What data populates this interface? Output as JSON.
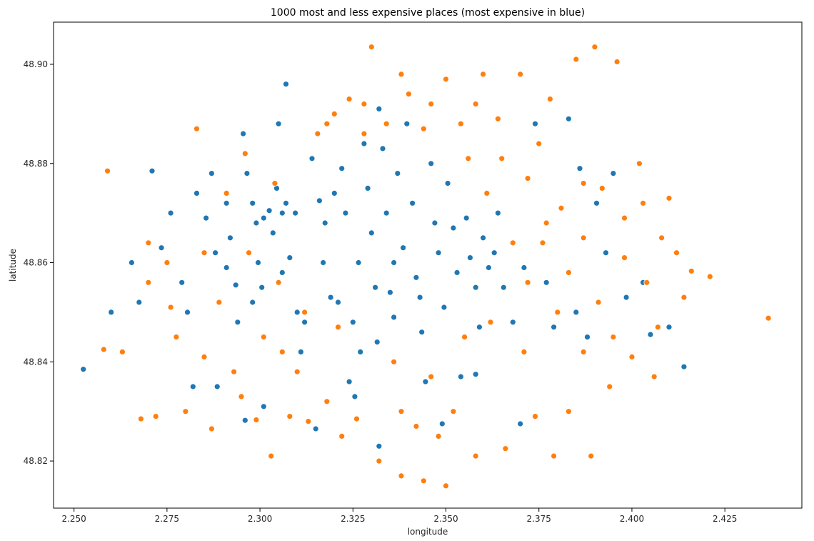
{
  "chart_data": {
    "type": "scatter",
    "title": "1000 most and less expensive places (most expensive in blue)",
    "xlabel": "longitude",
    "ylabel": "latitude",
    "xlim": [
      2.2445,
      2.4457
    ],
    "ylim": [
      48.8105,
      48.9085
    ],
    "xticks": [
      "2.250",
      "2.275",
      "2.300",
      "2.325",
      "2.350",
      "2.375",
      "2.400",
      "2.425"
    ],
    "yticks": [
      "48.82",
      "48.84",
      "48.86",
      "48.88",
      "48.90"
    ],
    "grid": false,
    "legend": "none",
    "series": [
      {
        "color": "#1f77b4",
        "points": [
          [
            2.2525,
            48.8385
          ],
          [
            2.26,
            48.85
          ],
          [
            2.2655,
            48.86
          ],
          [
            2.2675,
            48.852
          ],
          [
            2.271,
            48.8785
          ],
          [
            2.2735,
            48.863
          ],
          [
            2.276,
            48.87
          ],
          [
            2.279,
            48.856
          ],
          [
            2.2805,
            48.85
          ],
          [
            2.282,
            48.835
          ],
          [
            2.283,
            48.874
          ],
          [
            2.2855,
            48.869
          ],
          [
            2.287,
            48.878
          ],
          [
            2.288,
            48.862
          ],
          [
            2.2885,
            48.835
          ],
          [
            2.291,
            48.872
          ],
          [
            2.292,
            48.865
          ],
          [
            2.2935,
            48.8555
          ],
          [
            2.294,
            48.848
          ],
          [
            2.2955,
            48.886
          ],
          [
            2.2965,
            48.878
          ],
          [
            2.298,
            48.872
          ],
          [
            2.299,
            48.868
          ],
          [
            2.2995,
            48.86
          ],
          [
            2.3005,
            48.855
          ],
          [
            2.301,
            48.869
          ],
          [
            2.3025,
            48.8705
          ],
          [
            2.3035,
            48.866
          ],
          [
            2.3045,
            48.875
          ],
          [
            2.305,
            48.888
          ],
          [
            2.306,
            48.87
          ],
          [
            2.307,
            48.872
          ],
          [
            2.307,
            48.896
          ],
          [
            2.308,
            48.861
          ],
          [
            2.3095,
            48.87
          ],
          [
            2.31,
            48.85
          ],
          [
            2.311,
            48.842
          ],
          [
            2.314,
            48.881
          ],
          [
            2.316,
            48.8725
          ],
          [
            2.3175,
            48.868
          ],
          [
            2.319,
            48.853
          ],
          [
            2.32,
            48.874
          ],
          [
            2.322,
            48.879
          ],
          [
            2.323,
            48.87
          ],
          [
            2.324,
            48.836
          ],
          [
            2.325,
            48.848
          ],
          [
            2.3265,
            48.86
          ],
          [
            2.328,
            48.884
          ],
          [
            2.329,
            48.875
          ],
          [
            2.33,
            48.866
          ],
          [
            2.331,
            48.855
          ],
          [
            2.3315,
            48.844
          ],
          [
            2.332,
            48.891
          ],
          [
            2.333,
            48.883
          ],
          [
            2.334,
            48.87
          ],
          [
            2.335,
            48.854
          ],
          [
            2.336,
            48.849
          ],
          [
            2.337,
            48.878
          ],
          [
            2.3385,
            48.863
          ],
          [
            2.3395,
            48.888
          ],
          [
            2.341,
            48.872
          ],
          [
            2.342,
            48.857
          ],
          [
            2.3435,
            48.846
          ],
          [
            2.3445,
            48.836
          ],
          [
            2.346,
            48.88
          ],
          [
            2.347,
            48.868
          ],
          [
            2.348,
            48.862
          ],
          [
            2.3495,
            48.851
          ],
          [
            2.3505,
            48.876
          ],
          [
            2.352,
            48.867
          ],
          [
            2.353,
            48.858
          ],
          [
            2.354,
            48.837
          ],
          [
            2.3555,
            48.869
          ],
          [
            2.3565,
            48.861
          ],
          [
            2.358,
            48.855
          ],
          [
            2.359,
            48.847
          ],
          [
            2.36,
            48.865
          ],
          [
            2.3615,
            48.859
          ],
          [
            2.363,
            48.862
          ],
          [
            2.364,
            48.87
          ],
          [
            2.3655,
            48.855
          ],
          [
            2.368,
            48.848
          ],
          [
            2.371,
            48.859
          ],
          [
            2.374,
            48.888
          ],
          [
            2.377,
            48.856
          ],
          [
            2.379,
            48.847
          ],
          [
            2.383,
            48.889
          ],
          [
            2.385,
            48.85
          ],
          [
            2.386,
            48.879
          ],
          [
            2.388,
            48.845
          ],
          [
            2.3905,
            48.872
          ],
          [
            2.393,
            48.862
          ],
          [
            2.395,
            48.878
          ],
          [
            2.3985,
            48.853
          ],
          [
            2.403,
            48.856
          ],
          [
            2.405,
            48.8455
          ],
          [
            2.41,
            48.847
          ],
          [
            2.414,
            48.839
          ],
          [
            2.301,
            48.831
          ],
          [
            2.296,
            48.8282
          ],
          [
            2.315,
            48.8265
          ],
          [
            2.3255,
            48.833
          ],
          [
            2.332,
            48.823
          ],
          [
            2.349,
            48.8275
          ],
          [
            2.358,
            48.8375
          ],
          [
            2.37,
            48.8275
          ],
          [
            2.291,
            48.859
          ],
          [
            2.298,
            48.852
          ],
          [
            2.306,
            48.858
          ],
          [
            2.312,
            48.848
          ],
          [
            2.317,
            48.86
          ],
          [
            2.321,
            48.852
          ],
          [
            2.327,
            48.842
          ],
          [
            2.336,
            48.86
          ],
          [
            2.343,
            48.853
          ]
        ]
      },
      {
        "color": "#ff7f0e",
        "points": [
          [
            2.259,
            48.8785
          ],
          [
            2.258,
            48.8425
          ],
          [
            2.263,
            48.842
          ],
          [
            2.268,
            48.8285
          ],
          [
            2.27,
            48.856
          ],
          [
            2.272,
            48.829
          ],
          [
            2.276,
            48.851
          ],
          [
            2.2775,
            48.845
          ],
          [
            2.28,
            48.83
          ],
          [
            2.283,
            48.887
          ],
          [
            2.285,
            48.841
          ],
          [
            2.287,
            48.8265
          ],
          [
            2.289,
            48.852
          ],
          [
            2.293,
            48.838
          ],
          [
            2.295,
            48.833
          ],
          [
            2.297,
            48.862
          ],
          [
            2.299,
            48.8283
          ],
          [
            2.301,
            48.845
          ],
          [
            2.303,
            48.821
          ],
          [
            2.305,
            48.856
          ],
          [
            2.308,
            48.829
          ],
          [
            2.31,
            48.838
          ],
          [
            2.313,
            48.828
          ],
          [
            2.3155,
            48.886
          ],
          [
            2.318,
            48.832
          ],
          [
            2.32,
            48.89
          ],
          [
            2.322,
            48.825
          ],
          [
            2.324,
            48.893
          ],
          [
            2.326,
            48.8285
          ],
          [
            2.328,
            48.886
          ],
          [
            2.33,
            48.9035
          ],
          [
            2.332,
            48.82
          ],
          [
            2.334,
            48.888
          ],
          [
            2.336,
            48.84
          ],
          [
            2.338,
            48.817
          ],
          [
            2.34,
            48.894
          ],
          [
            2.342,
            48.827
          ],
          [
            2.344,
            48.816
          ],
          [
            2.346,
            48.892
          ],
          [
            2.348,
            48.825
          ],
          [
            2.35,
            48.815
          ],
          [
            2.35,
            48.897
          ],
          [
            2.352,
            48.83
          ],
          [
            2.354,
            48.888
          ],
          [
            2.356,
            48.881
          ],
          [
            2.358,
            48.821
          ],
          [
            2.36,
            48.898
          ],
          [
            2.361,
            48.874
          ],
          [
            2.364,
            48.889
          ],
          [
            2.366,
            48.8225
          ],
          [
            2.368,
            48.864
          ],
          [
            2.37,
            48.898
          ],
          [
            2.372,
            48.877
          ],
          [
            2.374,
            48.829
          ],
          [
            2.376,
            48.864
          ],
          [
            2.378,
            48.893
          ],
          [
            2.379,
            48.821
          ],
          [
            2.381,
            48.871
          ],
          [
            2.383,
            48.83
          ],
          [
            2.385,
            48.901
          ],
          [
            2.387,
            48.865
          ],
          [
            2.389,
            48.821
          ],
          [
            2.39,
            48.9035
          ],
          [
            2.392,
            48.875
          ],
          [
            2.394,
            48.835
          ],
          [
            2.396,
            48.9005
          ],
          [
            2.398,
            48.869
          ],
          [
            2.4,
            48.841
          ],
          [
            2.402,
            48.88
          ],
          [
            2.404,
            48.856
          ],
          [
            2.406,
            48.837
          ],
          [
            2.408,
            48.865
          ],
          [
            2.41,
            48.873
          ],
          [
            2.412,
            48.862
          ],
          [
            2.414,
            48.853
          ],
          [
            2.416,
            48.8583
          ],
          [
            2.421,
            48.8572
          ],
          [
            2.4367,
            48.8488
          ],
          [
            2.375,
            48.884
          ],
          [
            2.387,
            48.876
          ],
          [
            2.391,
            48.852
          ],
          [
            2.398,
            48.861
          ],
          [
            2.403,
            48.872
          ],
          [
            2.407,
            48.847
          ],
          [
            2.395,
            48.845
          ],
          [
            2.383,
            48.858
          ],
          [
            2.377,
            48.868
          ],
          [
            2.372,
            48.856
          ],
          [
            2.365,
            48.881
          ],
          [
            2.358,
            48.892
          ],
          [
            2.344,
            48.887
          ],
          [
            2.338,
            48.898
          ],
          [
            2.328,
            48.892
          ],
          [
            2.318,
            48.888
          ],
          [
            2.296,
            48.882
          ],
          [
            2.304,
            48.876
          ],
          [
            2.291,
            48.874
          ],
          [
            2.285,
            48.862
          ],
          [
            2.275,
            48.86
          ],
          [
            2.27,
            48.864
          ],
          [
            2.306,
            48.842
          ],
          [
            2.312,
            48.85
          ],
          [
            2.321,
            48.847
          ],
          [
            2.338,
            48.83
          ],
          [
            2.346,
            48.837
          ],
          [
            2.355,
            48.845
          ],
          [
            2.362,
            48.848
          ],
          [
            2.371,
            48.842
          ],
          [
            2.38,
            48.85
          ],
          [
            2.387,
            48.842
          ]
        ]
      }
    ]
  }
}
